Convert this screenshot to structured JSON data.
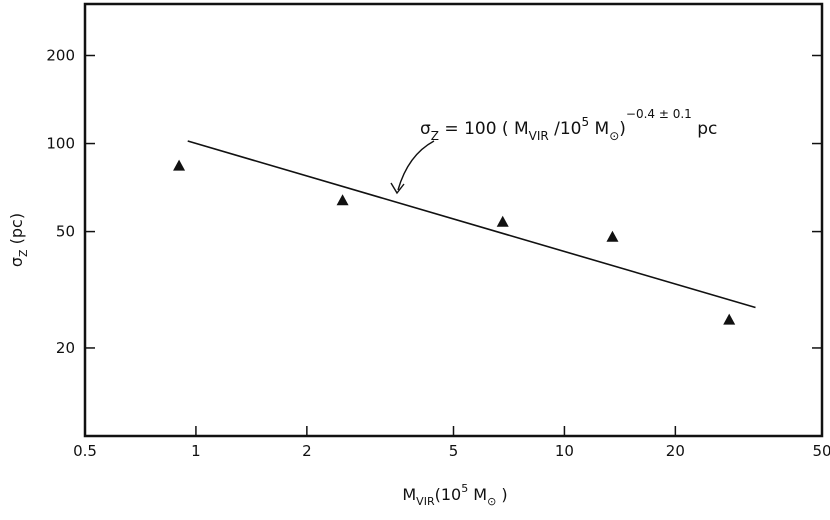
{
  "chart_data": {
    "type": "scatter",
    "title": "",
    "x_scale": "log",
    "y_scale": "log",
    "xlim": [
      0.5,
      50
    ],
    "ylim": [
      10,
      300
    ],
    "grid": false,
    "legend": "none",
    "xlabel": {
      "main": "M",
      "sub": "VIR",
      "paren_open": "(10",
      "sup": "5",
      "unit": " M",
      "sun_sub": "⊙",
      "paren_close": " )"
    },
    "ylabel": {
      "main": "σ",
      "sub": "Z",
      "unit": " (pc)"
    },
    "x_ticks": [
      {
        "value": 0.5,
        "label": "0.5"
      },
      {
        "value": 1,
        "label": "1"
      },
      {
        "value": 2,
        "label": "2"
      },
      {
        "value": 5,
        "label": "5"
      },
      {
        "value": 10,
        "label": "10"
      },
      {
        "value": 20,
        "label": "20"
      },
      {
        "value": 50,
        "label": "50"
      }
    ],
    "y_ticks": [
      {
        "value": 20,
        "label": "20"
      },
      {
        "value": 50,
        "label": "50"
      },
      {
        "value": 100,
        "label": "100"
      },
      {
        "value": 200,
        "label": "200"
      }
    ],
    "points": [
      {
        "x": 0.9,
        "y": 84
      },
      {
        "x": 2.5,
        "y": 64
      },
      {
        "x": 6.8,
        "y": 54
      },
      {
        "x": 13.5,
        "y": 48
      },
      {
        "x": 28,
        "y": 25
      }
    ],
    "marker": "triangle",
    "fit_line": {
      "x": [
        0.95,
        33
      ],
      "y": [
        102,
        27.5
      ]
    },
    "annotation": {
      "lhs_main": "σ",
      "lhs_sub": "Z",
      "rhs_pre": " = 100 ( M",
      "rhs_sub": "VIR",
      "rhs_mid": " /10",
      "rhs_sup5": "5",
      "rhs_unit": " M",
      "rhs_sun": "⊙",
      "rhs_close": ")",
      "exponent": "−0.4 ± 0.1",
      "unit": " pc",
      "arrow_target": {
        "x": 3.4,
        "y": 62
      }
    }
  }
}
